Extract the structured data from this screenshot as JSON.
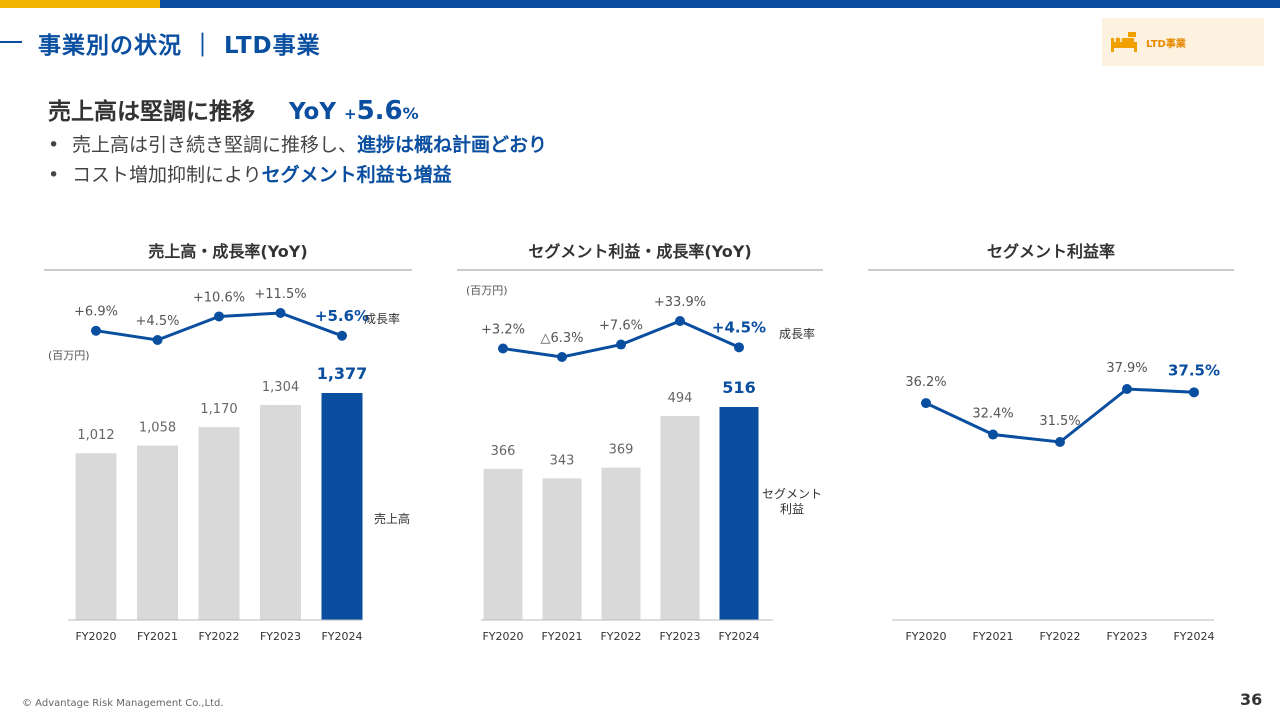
{
  "header": {
    "title": "事業別の状況 ｜ LTD事業",
    "badge_label": "LTD事業"
  },
  "headline": {
    "text": "売上高は堅調に推移",
    "yoy_prefix": "YoY ",
    "yoy_sign": "+",
    "yoy_value": "5.6",
    "yoy_pct": "%"
  },
  "bullets": [
    {
      "marker": "•",
      "normal": "売上高は引き続き堅調に推移し、",
      "highlight": "進捗は概ね計画どおり"
    },
    {
      "marker": "•",
      "normal": "コスト増加抑制により",
      "highlight": "セグメント利益も増益"
    }
  ],
  "chart_data": [
    {
      "type": "bar",
      "title": "売上高・成長率(YoY)",
      "unit_label": "(百万円)",
      "categories": [
        "FY2020",
        "FY2021",
        "FY2022",
        "FY2023",
        "FY2024"
      ],
      "values": [
        1012,
        1058,
        1170,
        1304,
        1377
      ],
      "value_labels": [
        "1,012",
        "1,058",
        "1,170",
        "1,304",
        "1,377"
      ],
      "bar_series_label": "売上高",
      "growth_series_label": "成長率",
      "growth": [
        6.9,
        4.5,
        10.6,
        11.5,
        5.6
      ],
      "growth_labels": [
        "+6.9%",
        "+4.5%",
        "+10.6%",
        "+11.5%",
        "+5.6%"
      ],
      "highlight_index": 4,
      "colors": {
        "bar": "#d9d9d9",
        "highlight": "#0a4ea0",
        "line": "#0a4ea0"
      }
    },
    {
      "type": "bar",
      "title": "セグメント利益・成長率(YoY)",
      "unit_label": "(百万円)",
      "categories": [
        "FY2020",
        "FY2021",
        "FY2022",
        "FY2023",
        "FY2024"
      ],
      "values": [
        366,
        343,
        369,
        494,
        516
      ],
      "value_labels": [
        "366",
        "343",
        "369",
        "494",
        "516"
      ],
      "bar_series_label": "セグメント\n利益",
      "growth_series_label": "成長率",
      "growth": [
        3.2,
        -6.3,
        7.6,
        33.9,
        4.5
      ],
      "growth_labels": [
        "+3.2%",
        "△6.3%",
        "+7.6%",
        "+33.9%",
        "+4.5%"
      ],
      "highlight_index": 4,
      "colors": {
        "bar": "#d9d9d9",
        "highlight": "#0a4ea0",
        "line": "#0a4ea0"
      }
    },
    {
      "type": "line",
      "title": "セグメント利益率",
      "categories": [
        "FY2020",
        "FY2021",
        "FY2022",
        "FY2023",
        "FY2024"
      ],
      "values": [
        36.2,
        32.4,
        31.5,
        37.9,
        37.5
      ],
      "value_labels": [
        "36.2%",
        "32.4%",
        "31.5%",
        "37.9%",
        "37.5%"
      ],
      "highlight_index": 4,
      "colors": {
        "line": "#0a4ea0"
      }
    }
  ],
  "footer": {
    "copyright": "© Advantage Risk Management Co.,Ltd.",
    "page_number": "36"
  }
}
